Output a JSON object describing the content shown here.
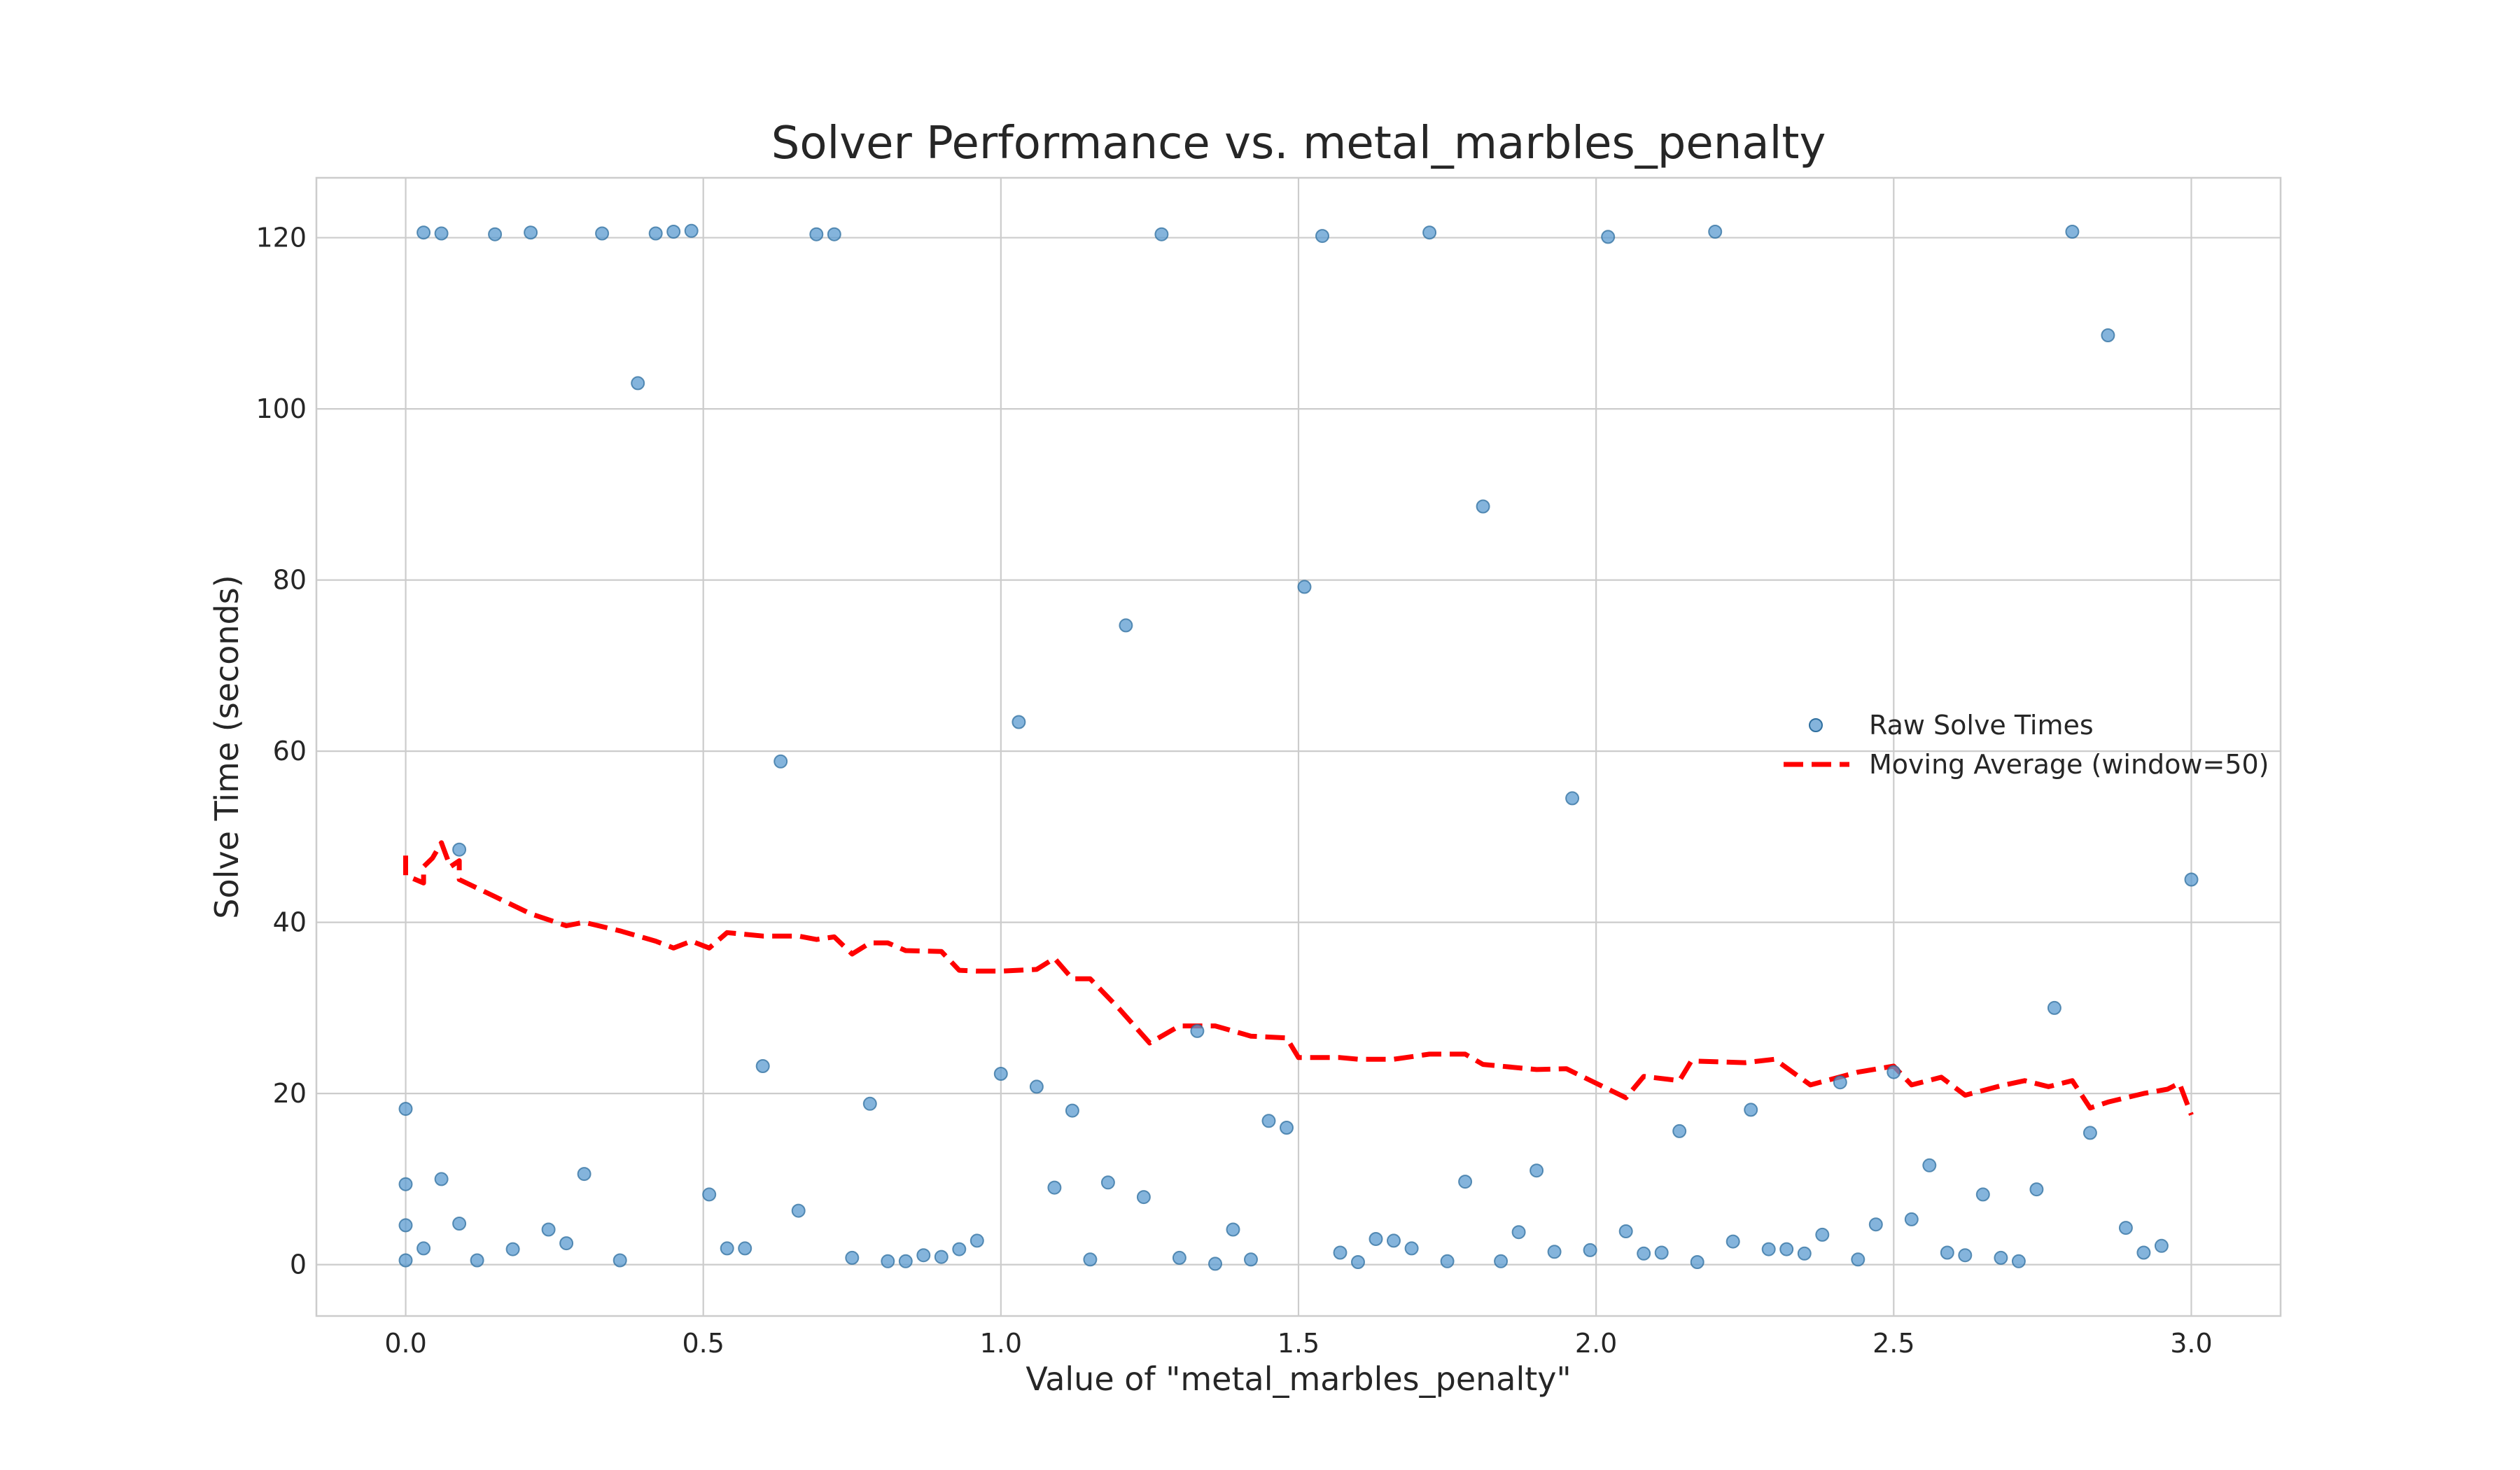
{
  "chart_data": {
    "type": "scatter",
    "title": "Solver Performance vs. metal_marbles_penalty",
    "xlabel": "Value of \"metal_marbles_penalty\"",
    "ylabel": "Solve Time (seconds)",
    "xlim": [
      -0.15,
      3.15
    ],
    "ylim": [
      -6,
      127
    ],
    "xticks": [
      0.0,
      0.5,
      1.0,
      1.5,
      2.0,
      2.5,
      3.0
    ],
    "xtick_labels": [
      "0.0",
      "0.5",
      "1.0",
      "1.5",
      "2.0",
      "2.5",
      "3.0"
    ],
    "yticks": [
      0,
      20,
      40,
      60,
      80,
      100,
      120
    ],
    "ytick_labels": [
      "0",
      "20",
      "40",
      "60",
      "80",
      "100",
      "120"
    ],
    "grid": true,
    "legend": {
      "position": "center-right"
    },
    "colors": {
      "scatter": "#5b9bd0",
      "moving_average": "#ff0000"
    },
    "series": [
      {
        "name": "Raw Solve Times",
        "kind": "scatter",
        "points": [
          [
            0.0,
            0.5
          ],
          [
            0.0,
            4.6
          ],
          [
            0.0,
            9.4
          ],
          [
            0.0,
            18.2
          ],
          [
            0.03,
            120.6
          ],
          [
            0.03,
            1.9
          ],
          [
            0.06,
            120.5
          ],
          [
            0.06,
            10.0
          ],
          [
            0.09,
            48.5
          ],
          [
            0.09,
            4.8
          ],
          [
            0.12,
            0.5
          ],
          [
            0.15,
            120.4
          ],
          [
            0.18,
            1.8
          ],
          [
            0.21,
            120.6
          ],
          [
            0.24,
            4.1
          ],
          [
            0.27,
            2.5
          ],
          [
            0.3,
            10.6
          ],
          [
            0.33,
            120.5
          ],
          [
            0.36,
            0.5
          ],
          [
            0.39,
            103.0
          ],
          [
            0.42,
            120.5
          ],
          [
            0.45,
            120.7
          ],
          [
            0.48,
            120.8
          ],
          [
            0.51,
            8.2
          ],
          [
            0.54,
            1.9
          ],
          [
            0.57,
            1.9
          ],
          [
            0.6,
            23.2
          ],
          [
            0.63,
            58.8
          ],
          [
            0.66,
            6.3
          ],
          [
            0.69,
            120.4
          ],
          [
            0.72,
            120.4
          ],
          [
            0.75,
            0.8
          ],
          [
            0.78,
            18.8
          ],
          [
            0.81,
            0.4
          ],
          [
            0.84,
            0.4
          ],
          [
            0.87,
            1.1
          ],
          [
            0.9,
            0.9
          ],
          [
            0.93,
            1.8
          ],
          [
            0.96,
            2.8
          ],
          [
            1.0,
            22.3
          ],
          [
            1.03,
            63.4
          ],
          [
            1.06,
            20.8
          ],
          [
            1.09,
            9.0
          ],
          [
            1.12,
            18.0
          ],
          [
            1.15,
            0.6
          ],
          [
            1.18,
            9.6
          ],
          [
            1.21,
            74.7
          ],
          [
            1.24,
            7.9
          ],
          [
            1.27,
            120.4
          ],
          [
            1.3,
            0.8
          ],
          [
            1.33,
            27.3
          ],
          [
            1.36,
            0.1
          ],
          [
            1.39,
            4.1
          ],
          [
            1.42,
            0.6
          ],
          [
            1.45,
            16.8
          ],
          [
            1.48,
            16.0
          ],
          [
            1.51,
            79.2
          ],
          [
            1.54,
            120.2
          ],
          [
            1.57,
            1.4
          ],
          [
            1.6,
            0.3
          ],
          [
            1.63,
            3.0
          ],
          [
            1.66,
            2.8
          ],
          [
            1.69,
            1.9
          ],
          [
            1.72,
            120.6
          ],
          [
            1.75,
            0.4
          ],
          [
            1.78,
            9.7
          ],
          [
            1.81,
            88.6
          ],
          [
            1.84,
            0.4
          ],
          [
            1.87,
            3.8
          ],
          [
            1.9,
            11.0
          ],
          [
            1.93,
            1.5
          ],
          [
            1.96,
            54.5
          ],
          [
            1.99,
            1.7
          ],
          [
            2.02,
            120.1
          ],
          [
            2.05,
            3.9
          ],
          [
            2.08,
            1.3
          ],
          [
            2.11,
            1.4
          ],
          [
            2.14,
            15.6
          ],
          [
            2.17,
            0.3
          ],
          [
            2.2,
            120.7
          ],
          [
            2.23,
            2.7
          ],
          [
            2.26,
            18.1
          ],
          [
            2.29,
            1.8
          ],
          [
            2.32,
            1.8
          ],
          [
            2.35,
            1.3
          ],
          [
            2.38,
            3.5
          ],
          [
            2.41,
            21.3
          ],
          [
            2.44,
            0.6
          ],
          [
            2.47,
            4.7
          ],
          [
            2.5,
            22.5
          ],
          [
            2.53,
            5.3
          ],
          [
            2.56,
            11.6
          ],
          [
            2.59,
            1.4
          ],
          [
            2.62,
            1.1
          ],
          [
            2.65,
            8.2
          ],
          [
            2.68,
            0.8
          ],
          [
            2.71,
            0.4
          ],
          [
            2.74,
            8.8
          ],
          [
            2.77,
            30.0
          ],
          [
            2.8,
            120.7
          ],
          [
            2.83,
            15.4
          ],
          [
            2.86,
            108.6
          ],
          [
            2.89,
            4.3
          ],
          [
            2.92,
            1.4
          ],
          [
            2.95,
            2.2
          ],
          [
            3.0,
            45.0
          ]
        ]
      },
      {
        "name": "Moving Average (window=50)",
        "kind": "line",
        "style": "dashed",
        "points": [
          [
            0.0,
            47.8
          ],
          [
            0.0,
            45.5
          ],
          [
            0.03,
            44.6
          ],
          [
            0.03,
            46.5
          ],
          [
            0.045,
            47.5
          ],
          [
            0.06,
            49.3
          ],
          [
            0.075,
            46.5
          ],
          [
            0.09,
            47.2
          ],
          [
            0.09,
            45.0
          ],
          [
            0.15,
            43.0
          ],
          [
            0.21,
            41.0
          ],
          [
            0.27,
            39.6
          ],
          [
            0.3,
            40.0
          ],
          [
            0.36,
            39.0
          ],
          [
            0.42,
            37.8
          ],
          [
            0.45,
            37.0
          ],
          [
            0.48,
            37.8
          ],
          [
            0.51,
            37.0
          ],
          [
            0.54,
            38.8
          ],
          [
            0.6,
            38.4
          ],
          [
            0.66,
            38.4
          ],
          [
            0.69,
            38.0
          ],
          [
            0.72,
            38.3
          ],
          [
            0.75,
            36.3
          ],
          [
            0.78,
            37.6
          ],
          [
            0.81,
            37.6
          ],
          [
            0.84,
            36.7
          ],
          [
            0.9,
            36.6
          ],
          [
            0.93,
            34.4
          ],
          [
            0.96,
            34.3
          ],
          [
            1.0,
            34.3
          ],
          [
            1.06,
            34.5
          ],
          [
            1.09,
            35.8
          ],
          [
            1.12,
            33.4
          ],
          [
            1.15,
            33.4
          ],
          [
            1.2,
            29.8
          ],
          [
            1.25,
            25.9
          ],
          [
            1.3,
            27.9
          ],
          [
            1.36,
            27.9
          ],
          [
            1.42,
            26.7
          ],
          [
            1.48,
            26.5
          ],
          [
            1.5,
            24.2
          ],
          [
            1.57,
            24.2
          ],
          [
            1.6,
            24.0
          ],
          [
            1.66,
            24.0
          ],
          [
            1.72,
            24.6
          ],
          [
            1.78,
            24.6
          ],
          [
            1.81,
            23.4
          ],
          [
            1.9,
            22.8
          ],
          [
            1.95,
            22.9
          ],
          [
            2.0,
            21.2
          ],
          [
            2.05,
            19.5
          ],
          [
            2.08,
            22.0
          ],
          [
            2.14,
            21.5
          ],
          [
            2.16,
            23.8
          ],
          [
            2.25,
            23.6
          ],
          [
            2.3,
            24.0
          ],
          [
            2.36,
            21.0
          ],
          [
            2.44,
            22.5
          ],
          [
            2.5,
            23.2
          ],
          [
            2.53,
            21.0
          ],
          [
            2.58,
            21.9
          ],
          [
            2.62,
            19.8
          ],
          [
            2.68,
            20.9
          ],
          [
            2.72,
            21.5
          ],
          [
            2.76,
            20.8
          ],
          [
            2.8,
            21.5
          ],
          [
            2.83,
            18.3
          ],
          [
            2.86,
            19.0
          ],
          [
            2.92,
            20.0
          ],
          [
            2.96,
            20.5
          ],
          [
            2.98,
            21.2
          ],
          [
            3.0,
            17.5
          ]
        ]
      }
    ]
  }
}
